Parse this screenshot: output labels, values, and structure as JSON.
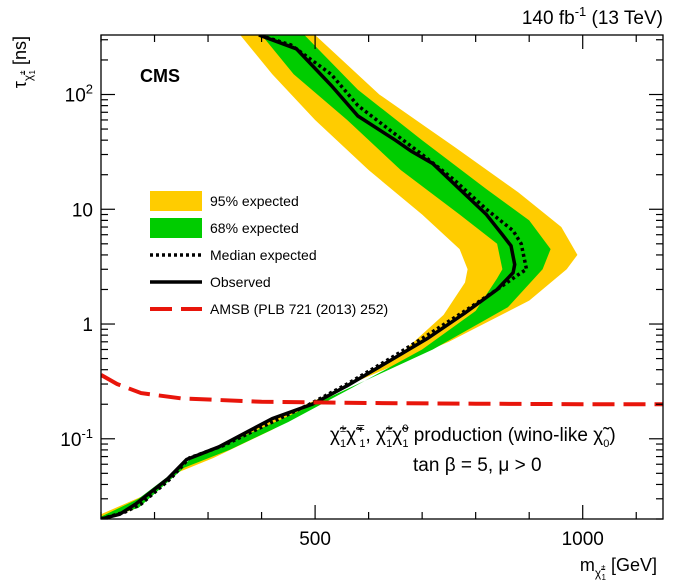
{
  "header": {
    "lumi_main": "140 fb",
    "lumi_sup": "-1",
    "lumi_rest": " (13 TeV)"
  },
  "experiment_label": "CMS",
  "axes": {
    "xlabel_main": "m",
    "xlabel_sub": "χ̃",
    "xlabel_subsub": "±",
    "xlabel_subsub2": "1",
    "xlabel_unit": " [GeV]",
    "ylabel_main": "τ",
    "ylabel_sub": "χ̃",
    "ylabel_subsup": "±",
    "ylabel_subsub": "1",
    "ylabel_unit": " [ns]"
  },
  "legend": {
    "items": [
      {
        "label": "95% expected",
        "style": "band",
        "color": "#FFCC00"
      },
      {
        "label": "68% expected",
        "style": "band",
        "color": "#00CC00"
      },
      {
        "label": "Median expected",
        "style": "dotted",
        "color": "#000000"
      },
      {
        "label": "Observed",
        "style": "solid",
        "color": "#000000"
      },
      {
        "label": "AMSB (PLB 721 (2013) 252)",
        "style": "dashed",
        "color": "#E8150B"
      }
    ]
  },
  "annotation": {
    "process_line": "χ̃±1χ̃∓1, χ̃±1χ̃01 production (wino-like χ̃0)",
    "process_parts": {
      "p1": "χ̃",
      "p1sup": "±",
      "p1sub": "1",
      "p2": "χ̃",
      "p2sup": "∓",
      "p2sub": "1",
      "comma": ", ",
      "p3": "χ̃",
      "p3sup": "±",
      "p3sub": "1",
      "p4": "χ̃",
      "p4sup": "0",
      "p4sub": "1",
      "text": " production (wino-like ",
      "p5": "χ̃",
      "p5sub": "0",
      "close": ")"
    },
    "params_line": "tan β = 5, μ > 0"
  },
  "chart_data": {
    "type": "line",
    "title": "",
    "xlabel": "m χ̃±1 [GeV]",
    "ylabel": "τ χ̃±1 [ns]",
    "xlim": [
      100,
      1150
    ],
    "ylim": [
      0.02,
      330
    ],
    "yscale": "log",
    "x_ticks": [
      500,
      1000
    ],
    "x_tick_labels": [
      "500",
      "1000"
    ],
    "y_ticks": [
      0.1,
      1,
      10,
      100
    ],
    "y_tick_labels": [
      "10^-1",
      "1",
      "10",
      "10^2"
    ],
    "grid": false,
    "legend_position": "center-left",
    "series": [
      {
        "name": "95% expected",
        "style": "band",
        "color": "#FFCC00",
        "upper": [
          [
            100,
            0.022
          ],
          [
            180,
            0.032
          ],
          [
            280,
            0.07
          ],
          [
            350,
            0.1
          ],
          [
            450,
            0.17
          ],
          [
            600,
            0.35
          ],
          [
            750,
            0.7
          ],
          [
            900,
            1.6
          ],
          [
            970,
            3
          ],
          [
            990,
            4
          ],
          [
            960,
            7
          ],
          [
            880,
            14
          ],
          [
            760,
            35
          ],
          [
            620,
            100
          ],
          [
            500,
            330
          ]
        ],
        "lower": [
          [
            100,
            0.02
          ],
          [
            160,
            0.024
          ],
          [
            240,
            0.05
          ],
          [
            310,
            0.068
          ],
          [
            420,
            0.12
          ],
          [
            540,
            0.25
          ],
          [
            660,
            0.55
          ],
          [
            740,
            1.2
          ],
          [
            780,
            2.3
          ],
          [
            785,
            3
          ],
          [
            770,
            4.5
          ],
          [
            700,
            9
          ],
          [
            600,
            22
          ],
          [
            500,
            60
          ],
          [
            420,
            150
          ],
          [
            360,
            330
          ]
        ]
      },
      {
        "name": "68% expected",
        "style": "band",
        "color": "#00CC00",
        "upper": [
          [
            100,
            0.021
          ],
          [
            170,
            0.03
          ],
          [
            265,
            0.065
          ],
          [
            320,
            0.085
          ],
          [
            440,
            0.15
          ],
          [
            580,
            0.3
          ],
          [
            720,
            0.6
          ],
          [
            860,
            1.4
          ],
          [
            925,
            3
          ],
          [
            940,
            4.5
          ],
          [
            900,
            8
          ],
          [
            820,
            15
          ],
          [
            700,
            40
          ],
          [
            580,
            110
          ],
          [
            480,
            330
          ]
        ],
        "lower": [
          [
            100,
            0.02
          ],
          [
            170,
            0.025
          ],
          [
            255,
            0.056
          ],
          [
            340,
            0.08
          ],
          [
            450,
            0.14
          ],
          [
            570,
            0.28
          ],
          [
            700,
            0.6
          ],
          [
            800,
            1.3
          ],
          [
            840,
            2.5
          ],
          [
            850,
            3
          ],
          [
            840,
            5
          ],
          [
            770,
            9
          ],
          [
            660,
            22
          ],
          [
            560,
            60
          ],
          [
            460,
            150
          ],
          [
            400,
            330
          ]
        ]
      },
      {
        "name": "Median expected",
        "style": "dotted",
        "color": "#000000",
        "points": [
          [
            100,
            0.02
          ],
          [
            145,
            0.023
          ],
          [
            175,
            0.027
          ],
          [
            230,
            0.045
          ],
          [
            265,
            0.068
          ],
          [
            330,
            0.088
          ],
          [
            420,
            0.14
          ],
          [
            490,
            0.2
          ],
          [
            560,
            0.3
          ],
          [
            640,
            0.5
          ],
          [
            710,
            0.8
          ],
          [
            780,
            1.3
          ],
          [
            840,
            2.0
          ],
          [
            880,
            2.7
          ],
          [
            895,
            3.0
          ],
          [
            885,
            5
          ],
          [
            870,
            6.5
          ],
          [
            820,
            10
          ],
          [
            760,
            18
          ],
          [
            700,
            30
          ],
          [
            650,
            45
          ],
          [
            580,
            80
          ],
          [
            530,
            150
          ],
          [
            455,
            270
          ],
          [
            395,
            330
          ]
        ]
      },
      {
        "name": "Observed",
        "style": "solid",
        "color": "#000000",
        "points": [
          [
            100,
            0.02
          ],
          [
            135,
            0.022
          ],
          [
            165,
            0.027
          ],
          [
            225,
            0.045
          ],
          [
            260,
            0.066
          ],
          [
            320,
            0.085
          ],
          [
            420,
            0.15
          ],
          [
            495,
            0.2
          ],
          [
            560,
            0.29
          ],
          [
            640,
            0.48
          ],
          [
            710,
            0.75
          ],
          [
            780,
            1.25
          ],
          [
            840,
            2.0
          ],
          [
            870,
            2.8
          ],
          [
            873,
            3.3
          ],
          [
            866,
            4.8
          ],
          [
            850,
            6.0
          ],
          [
            820,
            9
          ],
          [
            770,
            15
          ],
          [
            720,
            25
          ],
          [
            680,
            32
          ],
          [
            650,
            40
          ],
          [
            580,
            65
          ],
          [
            530,
            120
          ],
          [
            465,
            250
          ],
          [
            395,
            330
          ]
        ]
      },
      {
        "name": "AMSB (PLB 721 (2013) 252)",
        "style": "dashed",
        "color": "#E8150B",
        "points": [
          [
            100,
            0.36
          ],
          [
            130,
            0.3
          ],
          [
            175,
            0.25
          ],
          [
            250,
            0.225
          ],
          [
            400,
            0.21
          ],
          [
            600,
            0.205
          ],
          [
            800,
            0.202
          ],
          [
            1000,
            0.2
          ],
          [
            1150,
            0.2
          ]
        ]
      }
    ]
  }
}
